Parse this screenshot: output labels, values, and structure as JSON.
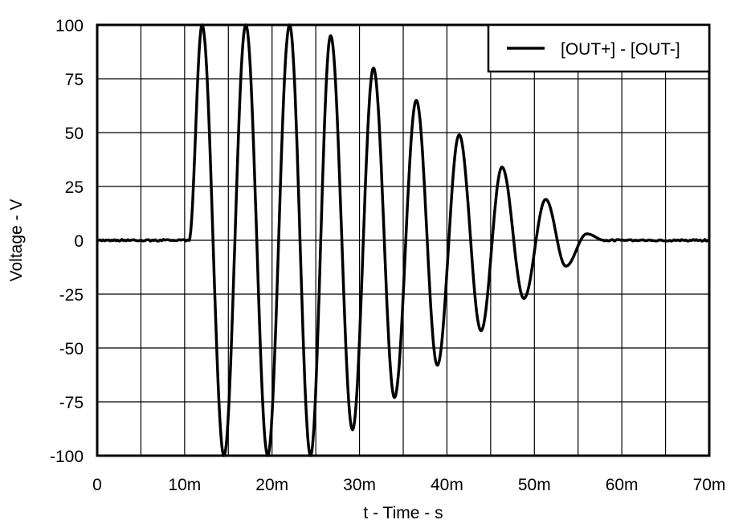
{
  "chart_data": {
    "type": "line",
    "title": "",
    "xlabel": "t - Time - s",
    "ylabel": "Voltage - V",
    "xlim": [
      0,
      70
    ],
    "ylim": [
      -100,
      100
    ],
    "x_unit": "ms",
    "grid": true,
    "legend_position": "top-right",
    "x_ticks": [
      0,
      10,
      20,
      30,
      40,
      50,
      60,
      70
    ],
    "x_tick_labels": [
      "0",
      "10m",
      "20m",
      "30m",
      "40m",
      "50m",
      "60m",
      "70m"
    ],
    "x_minor_grid_step": 5,
    "y_ticks": [
      100,
      75,
      50,
      25,
      0,
      -25,
      -50,
      -75,
      -100
    ],
    "y_tick_labels": [
      "100",
      "75",
      "50",
      "25",
      "0",
      "-25",
      "-50",
      "-75",
      "-100"
    ],
    "series": [
      {
        "name": "[OUT+] - [OUT-]",
        "color": "#000000",
        "description": "Damped sinusoidal ringing starting ~10.5 ms, ~5 ms period, clipped at ±100 V for first cycles, decaying to 0 by ~57 ms",
        "x": [
          0,
          5,
          10.5,
          12.0,
          14.5,
          17.0,
          19.5,
          22.0,
          24.4,
          26.7,
          29.2,
          31.6,
          34.0,
          36.5,
          38.9,
          41.4,
          43.9,
          46.3,
          48.8,
          51.3,
          53.6,
          56.0,
          58.0,
          65,
          70
        ],
        "values": [
          0,
          0,
          0,
          100,
          -100,
          100,
          -100,
          100,
          -100,
          95,
          -88,
          80,
          -73,
          65,
          -58,
          49,
          -42,
          34,
          -27,
          19,
          -12,
          3,
          0,
          0,
          0
        ]
      }
    ]
  },
  "legend": {
    "items": [
      {
        "label": "[OUT+] - [OUT-]"
      }
    ]
  },
  "axes": {
    "x_title": "t - Time - s",
    "y_title": "Voltage - V",
    "x_labels": [
      "0",
      "10m",
      "20m",
      "30m",
      "40m",
      "50m",
      "60m",
      "70m"
    ],
    "y_labels": [
      "100",
      "75",
      "50",
      "25",
      "0",
      "-25",
      "-50",
      "-75",
      "-100"
    ]
  }
}
